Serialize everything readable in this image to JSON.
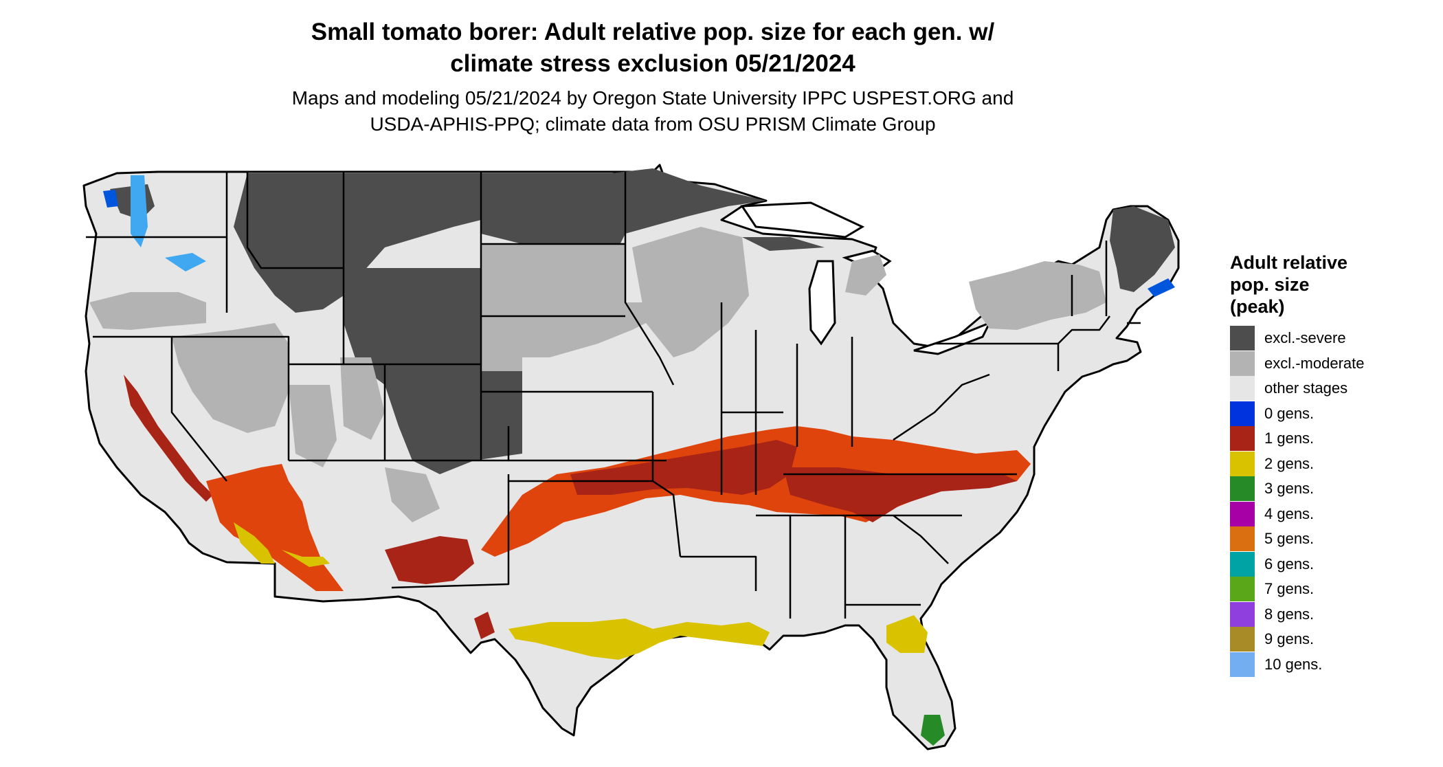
{
  "title": {
    "line1": "Small tomato borer: Adult relative pop. size for each gen. w/",
    "line2": "climate stress exclusion 05/21/2024"
  },
  "subtitle": {
    "line1": "Maps and modeling 05/21/2024 by Oregon State University IPPC USPEST.ORG and",
    "line2": "USDA-APHIS-PPQ; climate data from OSU PRISM Climate Group"
  },
  "legend": {
    "title_lines": [
      "Adult relative",
      "pop. size",
      "(peak)"
    ],
    "items": [
      {
        "label": "excl.-severe",
        "color": "#4d4d4d"
      },
      {
        "label": "excl.-moderate",
        "color": "#b3b3b3"
      },
      {
        "label": "other stages",
        "color": "#e6e6e6"
      },
      {
        "label": "0 gens.",
        "color": "#0033dd"
      },
      {
        "label": "1 gens.",
        "color": "#a82416"
      },
      {
        "label": "2 gens.",
        "color": "#d9c200"
      },
      {
        "label": "3 gens.",
        "color": "#268a26"
      },
      {
        "label": "4 gens.",
        "color": "#a600a6"
      },
      {
        "label": "5 gens.",
        "color": "#d96f10"
      },
      {
        "label": "6 gens.",
        "color": "#00a3a3"
      },
      {
        "label": "7 gens.",
        "color": "#5aa81a"
      },
      {
        "label": "8 gens.",
        "color": "#8f3fdd"
      },
      {
        "label": "9 gens.",
        "color": "#a88a26"
      },
      {
        "label": "10 gens.",
        "color": "#72aef0"
      }
    ]
  },
  "map": {
    "land_color": "#e6e6e6",
    "border_color": "#000000",
    "water_color": "#ffffff",
    "accent_red": "#a82416",
    "accent_orange": "#e0440d"
  }
}
